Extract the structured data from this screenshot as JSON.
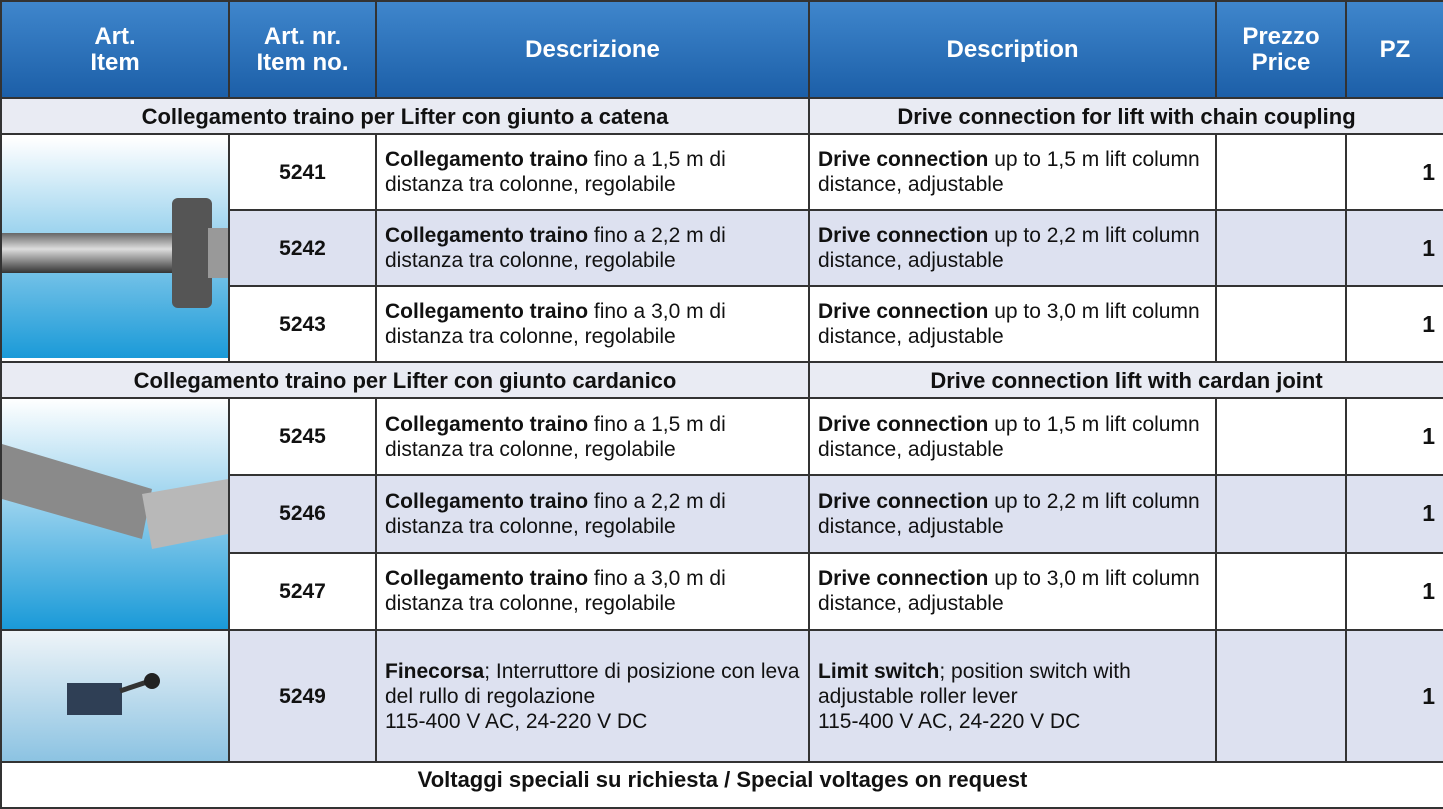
{
  "header": [
    [
      "Art.",
      "Item"
    ],
    [
      "Art. nr.",
      "Item no."
    ],
    [
      "Descrizione"
    ],
    [
      "Description"
    ],
    [
      "Prezzo",
      "Price"
    ],
    [
      "PZ"
    ]
  ],
  "sections": [
    {
      "title_it": "Collegamento traino per Lifter con giunto a catena",
      "title_en": "Drive connection for lift with chain coupling",
      "rows": [
        {
          "item": "5241",
          "it": {
            "bold": "Collegamento traino",
            "text": " fino a 1,5 m di distanza tra colonne, regolabile"
          },
          "en": {
            "bold": "Drive connection",
            "text": " up to 1,5 m lift column distance, adjustable"
          },
          "pz": "1"
        },
        {
          "item": "5242",
          "it": {
            "bold": "Collegamento traino",
            "text": " fino a 2,2 m di distanza tra colonne, regolabile"
          },
          "en": {
            "bold": "Drive connection",
            "text": " up to 2,2 m lift column distance, adjustable"
          },
          "pz": "1"
        },
        {
          "item": "5243",
          "it": {
            "bold": "Collegamento traino",
            "text": " fino a 3,0 m di distanza tra colonne, regolabile"
          },
          "en": {
            "bold": "Drive connection",
            "text": " up to 3,0 m lift column distance, adjustable"
          },
          "pz": "1"
        }
      ]
    },
    {
      "title_it": "Collegamento traino per Lifter con giunto cardanico",
      "title_en": "Drive connection lift with cardan joint",
      "rows": [
        {
          "item": "5245",
          "it": {
            "bold": "Collegamento traino",
            "text": " fino a 1,5 m di distanza tra colonne, regolabile"
          },
          "en": {
            "bold": "Drive connection",
            "text": " up to 1,5 m lift column distance, adjustable"
          },
          "pz": "1"
        },
        {
          "item": "5246",
          "it": {
            "bold": "Collegamento traino",
            "text": " fino a 2,2 m di distanza tra colonne, regolabile"
          },
          "en": {
            "bold": "Drive connection",
            "text": " up to 2,2 m lift column distance, adjustable"
          },
          "pz": "1"
        },
        {
          "item": "5247",
          "it": {
            "bold": "Collegamento traino",
            "text": " fino a 3,0 m di distanza tra colonne, regolabile"
          },
          "en": {
            "bold": "Drive connection",
            "text": " up to 3,0 m lift column distance, adjustable"
          },
          "pz": "1"
        }
      ]
    }
  ],
  "extra_row": {
    "item": "5249",
    "it": {
      "bold": "Finecorsa",
      "text": "; Interruttore di posizione con leva del rullo di regolazione",
      "extra": "115-400 V AC, 24-220 V DC"
    },
    "en": {
      "bold": "Limit switch",
      "text": "; position switch with adjustable roller lever",
      "extra": "115-400 V AC, 24-220 V DC"
    },
    "pz": "1"
  },
  "footer": "Voltaggi speciali su richiesta / Special voltages on request"
}
